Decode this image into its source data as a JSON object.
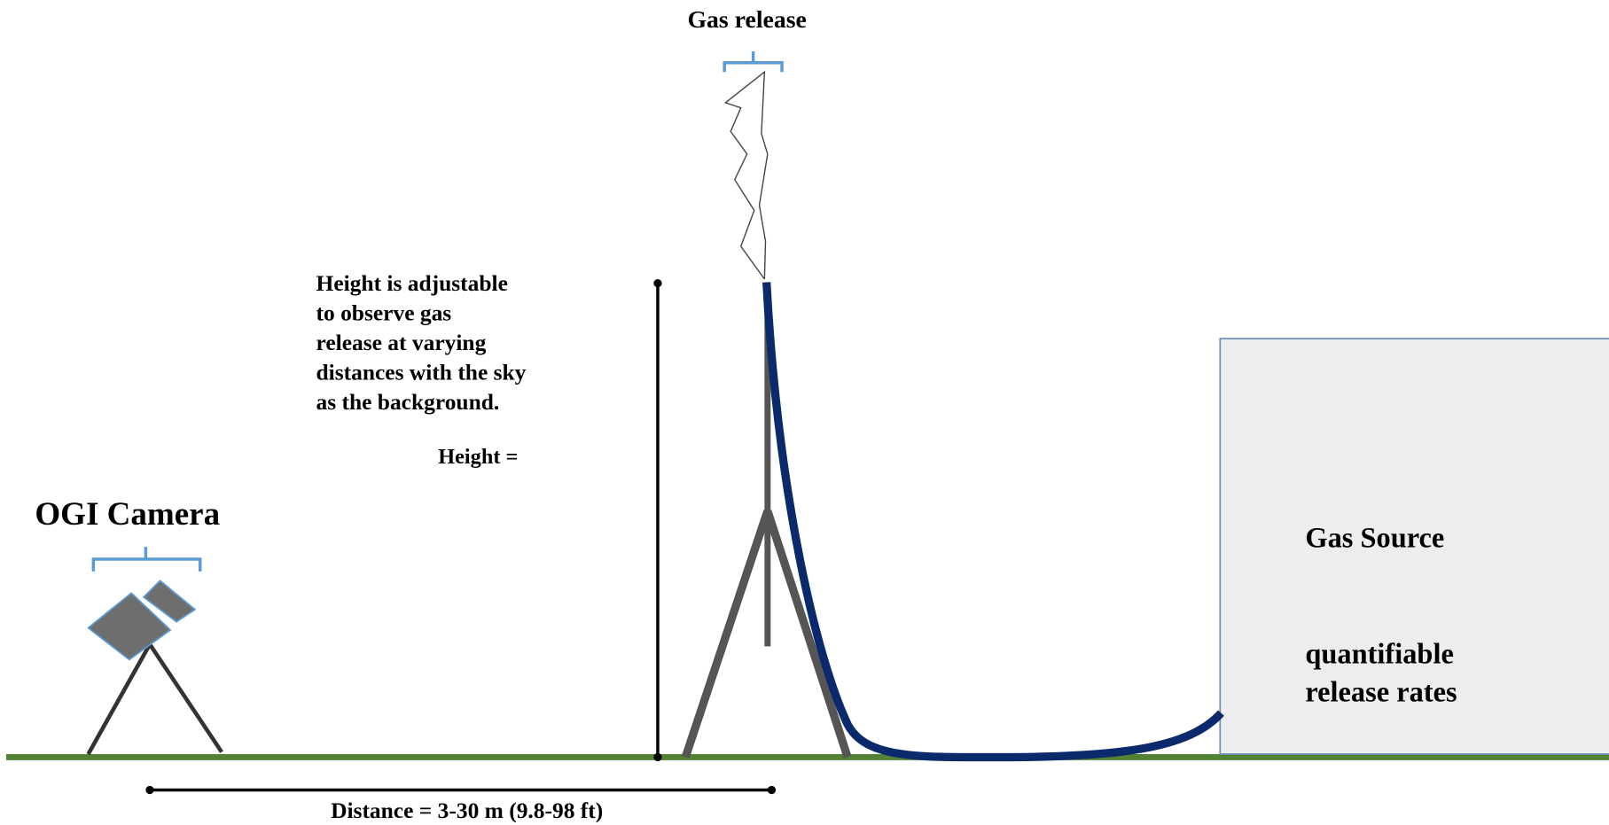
{
  "title": "Gas release",
  "camera": {
    "label": "OGI Camera"
  },
  "height_note": {
    "lines": [
      "Height is adjustable",
      "to observe gas",
      "release at varying",
      "distances with the sky",
      "as the background."
    ],
    "height_label": "Height ="
  },
  "source": {
    "title": "Gas Source",
    "lines": [
      "quantifiable",
      "release rates"
    ]
  },
  "distance": {
    "label": "Distance = 3-30 m  (9.8-98 ft)"
  }
}
